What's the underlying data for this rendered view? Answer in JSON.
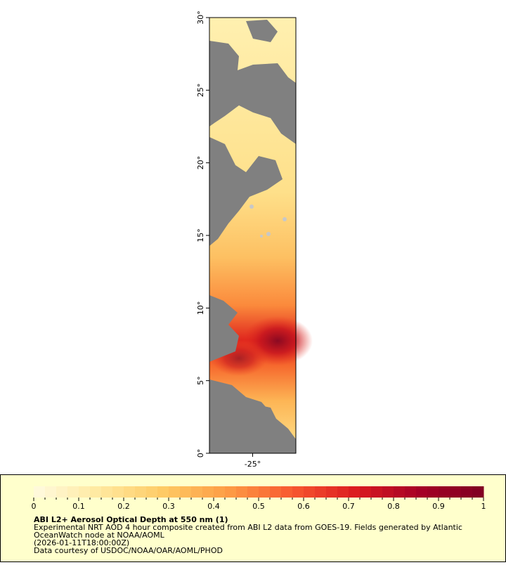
{
  "map": {
    "xlim": [
      -28,
      -22
    ],
    "ylim": [
      0,
      30
    ],
    "xticks": [
      {
        "value": -25,
        "label": "-25°"
      }
    ],
    "yticks": [
      {
        "value": 0,
        "label": "0°"
      },
      {
        "value": 5,
        "label": "5°"
      },
      {
        "value": 10,
        "label": "10°"
      },
      {
        "value": 15,
        "label": "15°"
      },
      {
        "value": 20,
        "label": "20°"
      },
      {
        "value": 25,
        "label": "25°"
      },
      {
        "value": 30,
        "label": "30°"
      }
    ]
  },
  "legend": {
    "colorbar": {
      "lim": [
        0,
        1
      ],
      "ticks": [
        0,
        0.1,
        0.2,
        0.3,
        0.4,
        0.5,
        0.6,
        0.7,
        0.8,
        0.9,
        1
      ],
      "colors": [
        "#fffbe0",
        "#ffe9a0",
        "#fecb65",
        "#fd9d45",
        "#f85a30",
        "#dc1c20",
        "#a50026",
        "#7f0022"
      ]
    },
    "title": "ABI L2+ Aerosol Optical Depth at 550 nm (1)",
    "lines": [
      "Experimental NRT AOD 4 hour composite created from ABI L2 data from GOES-19. Fields generated by Atlantic",
      "OceanWatch node at NOAA/AOML",
      "(2026-01-11T18:00:00Z)",
      "Data courtesy of USDOC/NOAA/OAR/AOML/PHOD"
    ]
  }
}
